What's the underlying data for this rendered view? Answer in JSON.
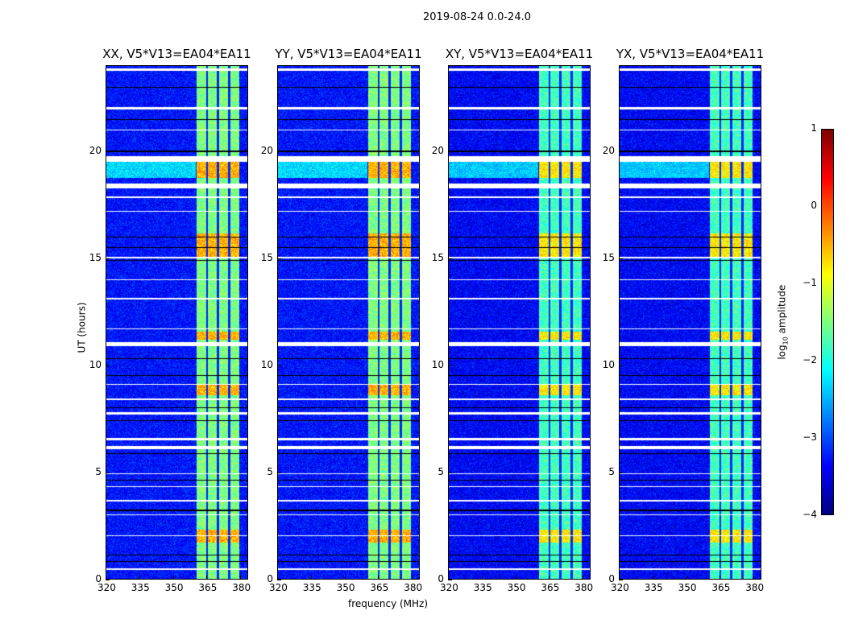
{
  "chart_data": {
    "type": "heatmap",
    "title": "2019-08-24 0.0-24.0",
    "xlabel": "frequency (MHz)",
    "ylabel": "UT (hours)",
    "xlim": [
      320,
      383.5
    ],
    "ylim": [
      0,
      24
    ],
    "xticks": [
      320,
      335,
      350,
      365,
      380
    ],
    "yticks": [
      0,
      5,
      10,
      15,
      20
    ],
    "panels": [
      {
        "title": "XX, V5*V13=EA04*EA11",
        "gain": 0
      },
      {
        "title": "YY, V5*V13=EA04*EA11",
        "gain": 0
      },
      {
        "title": "XY, V5*V13=EA04*EA11",
        "gain": -0.3
      },
      {
        "title": "YX, V5*V13=EA04*EA11",
        "gain": -0.3
      }
    ],
    "colorbar": {
      "label": "log10 amplitude",
      "label_base": "log",
      "label_sub": "10",
      "label_rest": " amplitude",
      "min": -4,
      "max": 1,
      "ticks": [
        "1",
        "0",
        "−1",
        "−2",
        "−3",
        "−4"
      ],
      "colormap": "jet"
    },
    "background_log_amplitude": -3.3,
    "band_mhz": [
      360.5,
      379.8
    ],
    "band_log_amplitude": -1.5,
    "band_gaps_mhz": [
      365.2,
      370.2,
      375.2
    ],
    "bright_intervals_hours": [
      [
        18.8,
        19.8
      ],
      [
        15.1,
        16.2
      ],
      [
        8.6,
        9.1
      ],
      [
        1.7,
        2.3
      ],
      [
        11.2,
        11.6
      ]
    ],
    "flagged_intervals_hours": [
      [
        23.8,
        23.9
      ],
      [
        22.0,
        22.1
      ],
      [
        21.0,
        21.05
      ],
      [
        19.55,
        19.8
      ],
      [
        18.3,
        18.5
      ],
      [
        17.85,
        17.9
      ],
      [
        17.2,
        17.25
      ],
      [
        15.0,
        15.1
      ],
      [
        14.0,
        14.05
      ],
      [
        13.1,
        13.15
      ],
      [
        11.7,
        11.75
      ],
      [
        10.9,
        11.1
      ],
      [
        9.1,
        9.15
      ],
      [
        8.4,
        8.45
      ],
      [
        7.7,
        7.8
      ],
      [
        6.5,
        6.6
      ],
      [
        6.1,
        6.25
      ],
      [
        4.9,
        4.95
      ],
      [
        4.3,
        4.35
      ],
      [
        3.65,
        3.7
      ],
      [
        3.0,
        3.05
      ],
      [
        2.0,
        2.05
      ],
      [
        0.45,
        0.5
      ]
    ],
    "dark_intervals_hours": [
      [
        23.0,
        23.05
      ],
      [
        21.5,
        21.55
      ],
      [
        20.0,
        20.05
      ],
      [
        16.0,
        16.05
      ],
      [
        15.5,
        15.55
      ],
      [
        14.9,
        14.95
      ],
      [
        10.3,
        10.35
      ],
      [
        9.5,
        9.55
      ],
      [
        8.0,
        8.05
      ],
      [
        7.4,
        7.45
      ],
      [
        5.85,
        5.9
      ],
      [
        4.6,
        4.65
      ],
      [
        3.2,
        3.25
      ],
      [
        1.1,
        1.15
      ],
      [
        0.8,
        0.85
      ]
    ]
  }
}
